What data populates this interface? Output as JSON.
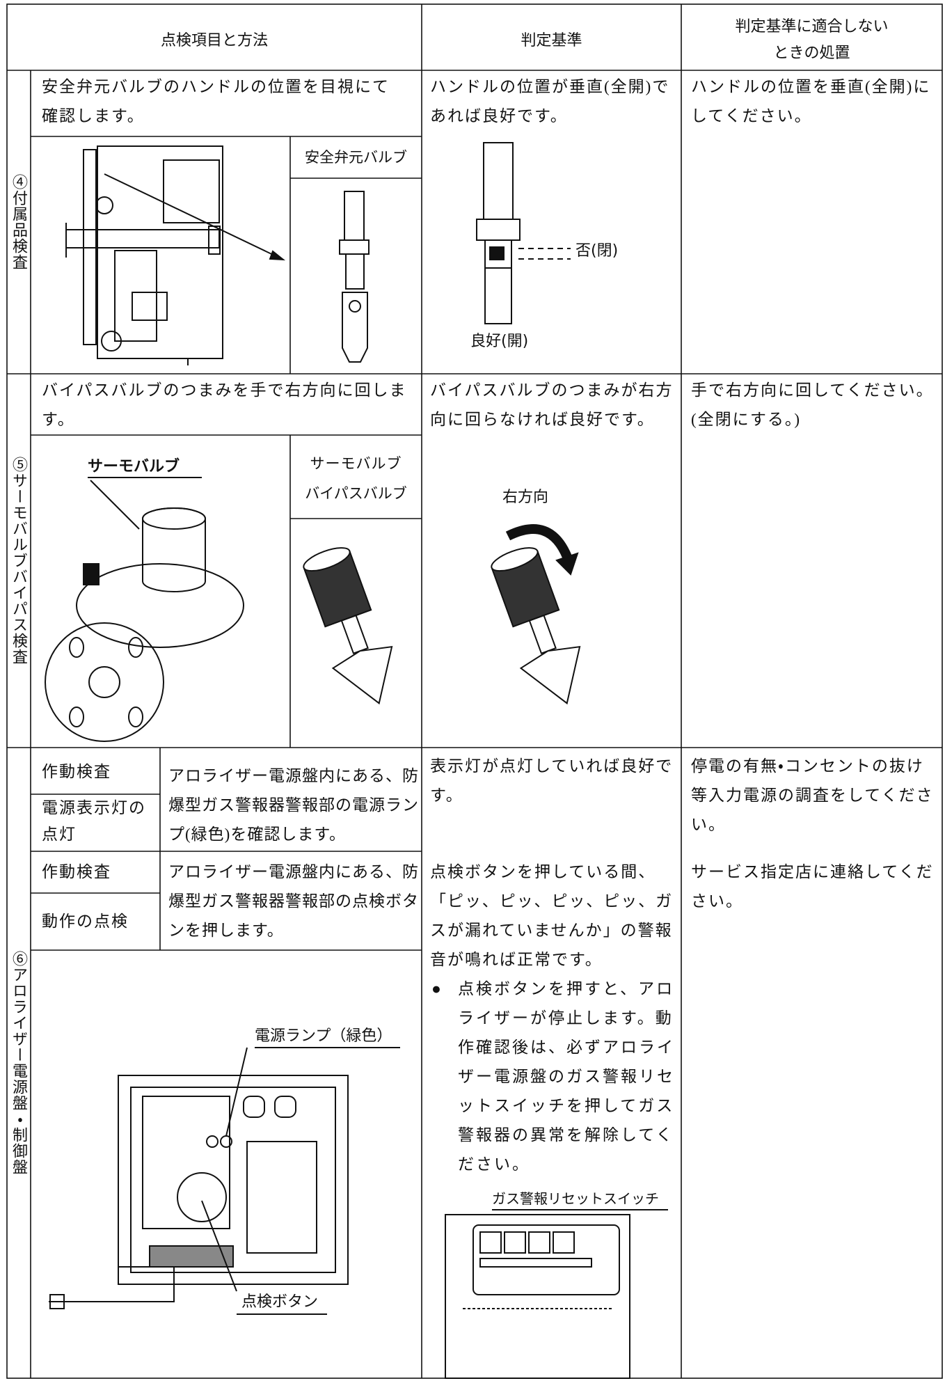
{
  "header": {
    "items": "点検項目と方法",
    "criteria": "判定基準",
    "action": [
      "判定基準に適合しない",
      "ときの処置"
    ]
  },
  "rows": [
    {
      "section": "④付属品検査",
      "method": "安全弁元バルブのハンドルの位置を目視にて確認します。",
      "image_label": "安全弁元バルブ",
      "criteria": "ハンドルの位置が垂直(全開)であれば良好です。",
      "callouts": [
        "否(閉)",
        "良好(開)"
      ],
      "action": "ハンドルの位置を垂直(全開)にしてください。"
    },
    {
      "section": "⑤サーモバルブバイパス検査",
      "method": "バイパスバルブのつまみを手で右方向に回します。",
      "image_labels": [
        "サーモバルブ",
        "バイパスバルブ"
      ],
      "image_callout": "サーモバルブ",
      "criteria": "バイパスバルブのつまみが右方向に回らなければ良好です。",
      "criteria_callout": "右方向",
      "action": [
        "手で右方向に回してください。",
        "(全閉にする。)"
      ]
    },
    {
      "section": "⑥アロライザー電源盤・制御盤",
      "checks": [
        {
          "type": "作動検査",
          "item": "電源表示灯の点灯",
          "method": "アロライザー電源盤内にある、防爆型ガス警報器警報部の電源ランプ(緑色)を確認します。",
          "criteria": "表示灯が点灯していれば良好です。",
          "action": "停電の有無・コンセントの抜け等入力電源の調査をしてください。"
        },
        {
          "type": "作動検査",
          "item": "動作の点検",
          "method": "アロライザー電源盤内にある、防爆型ガス警報器警報部の点検ボタンを押します。",
          "criteria": "点検ボタンを押している間、「ピッ、ピッ、ピッ、ピッ、ガスが漏れていませんか」の警報音が鳴れば正常です。",
          "action": "サービス指定店に連絡してください。"
        }
      ],
      "note": {
        "bullet": "●",
        "text": "点検ボタンを押すと、アロライザーが停止します。動作確認後は、必ずアロライザー電源盤のガス警報リセットスイッチを押してガス警報器の異常を解除してください。"
      },
      "callouts": [
        "電源ランプ（緑色）",
        "点検ボタン",
        "ガス警報リセットスイッチ"
      ]
    }
  ]
}
